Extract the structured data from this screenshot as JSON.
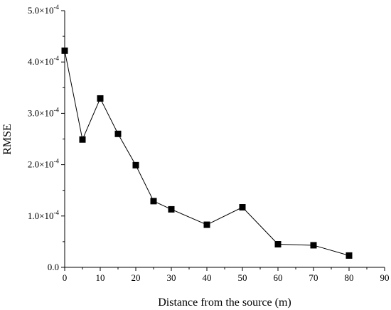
{
  "chart_data": {
    "type": "line",
    "title": "",
    "xlabel": "Distance from the source (m)",
    "ylabel": "RMSE",
    "xlim": [
      0,
      90
    ],
    "ylim": [
      0,
      0.0005
    ],
    "x_ticks": [
      {
        "value": 0,
        "label": "0"
      },
      {
        "value": 10,
        "label": "10"
      },
      {
        "value": 20,
        "label": "20"
      },
      {
        "value": 30,
        "label": "30"
      },
      {
        "value": 40,
        "label": "40"
      },
      {
        "value": 50,
        "label": "50"
      },
      {
        "value": 60,
        "label": "60"
      },
      {
        "value": 70,
        "label": "70"
      },
      {
        "value": 80,
        "label": "80"
      },
      {
        "value": 90,
        "label": "90"
      }
    ],
    "y_ticks": [
      {
        "value": 0,
        "label": "0.0"
      },
      {
        "value": 0.0001,
        "label": "1.0×10",
        "exp": "-4"
      },
      {
        "value": 0.0002,
        "label": "2.0×10",
        "exp": "-4"
      },
      {
        "value": 0.0003,
        "label": "3.0×10",
        "exp": "-4"
      },
      {
        "value": 0.0004,
        "label": "4.0×10",
        "exp": "-4"
      },
      {
        "value": 0.0005,
        "label": "5.0×10",
        "exp": "-4"
      }
    ],
    "series": [
      {
        "marker": "square",
        "color": "#000000",
        "x": [
          0,
          5,
          10,
          15,
          20,
          25,
          30,
          40,
          50,
          60,
          70,
          80
        ],
        "y": [
          0.000422,
          0.000249,
          0.000329,
          0.00026,
          0.000199,
          0.000129,
          0.000113,
          8.3e-05,
          0.000117,
          4.5e-05,
          4.3e-05,
          2.3e-05
        ]
      }
    ],
    "grid": false,
    "legend": "none"
  }
}
